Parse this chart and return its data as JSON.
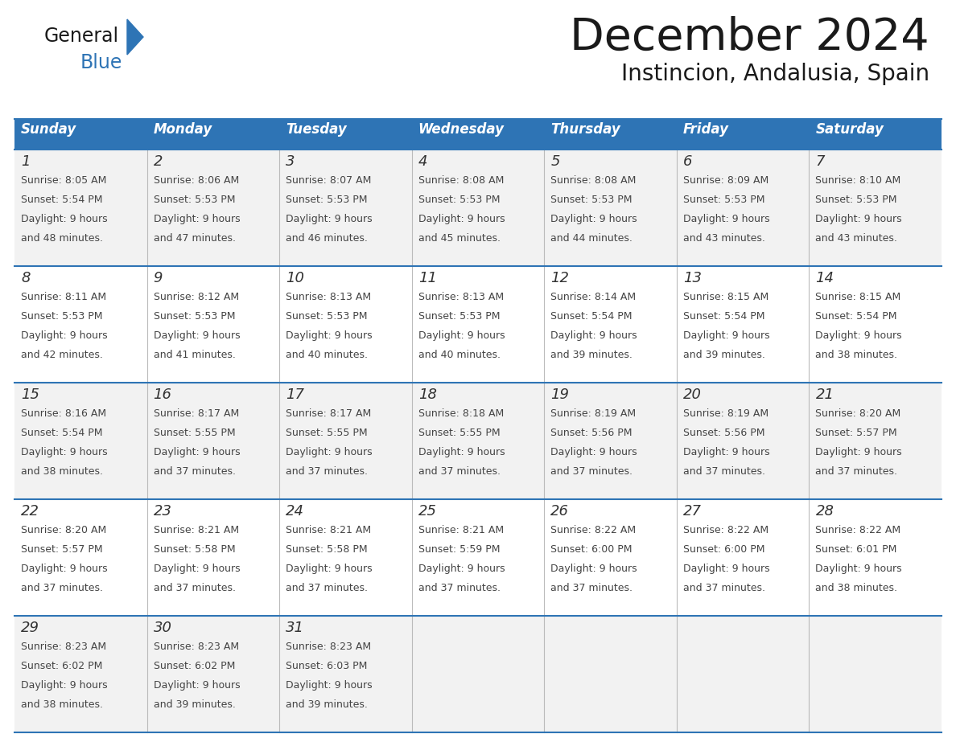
{
  "title": "December 2024",
  "subtitle": "Instincion, Andalusia, Spain",
  "days_of_week": [
    "Sunday",
    "Monday",
    "Tuesday",
    "Wednesday",
    "Thursday",
    "Friday",
    "Saturday"
  ],
  "header_bg": "#2E74B5",
  "header_text_color": "#FFFFFF",
  "row_bg_odd": "#F2F2F2",
  "row_bg_even": "#FFFFFF",
  "cell_border_color": "#2E74B5",
  "day_num_color": "#333333",
  "text_color": "#444444",
  "logo_general_color": "#1a1a1a",
  "logo_blue_color": "#2E74B5",
  "calendar_data": [
    [
      {
        "day": 1,
        "sunrise": "8:05 AM",
        "sunset": "5:54 PM",
        "daylight_hours": 9,
        "daylight_minutes": 48
      },
      {
        "day": 2,
        "sunrise": "8:06 AM",
        "sunset": "5:53 PM",
        "daylight_hours": 9,
        "daylight_minutes": 47
      },
      {
        "day": 3,
        "sunrise": "8:07 AM",
        "sunset": "5:53 PM",
        "daylight_hours": 9,
        "daylight_minutes": 46
      },
      {
        "day": 4,
        "sunrise": "8:08 AM",
        "sunset": "5:53 PM",
        "daylight_hours": 9,
        "daylight_minutes": 45
      },
      {
        "day": 5,
        "sunrise": "8:08 AM",
        "sunset": "5:53 PM",
        "daylight_hours": 9,
        "daylight_minutes": 44
      },
      {
        "day": 6,
        "sunrise": "8:09 AM",
        "sunset": "5:53 PM",
        "daylight_hours": 9,
        "daylight_minutes": 43
      },
      {
        "day": 7,
        "sunrise": "8:10 AM",
        "sunset": "5:53 PM",
        "daylight_hours": 9,
        "daylight_minutes": 43
      }
    ],
    [
      {
        "day": 8,
        "sunrise": "8:11 AM",
        "sunset": "5:53 PM",
        "daylight_hours": 9,
        "daylight_minutes": 42
      },
      {
        "day": 9,
        "sunrise": "8:12 AM",
        "sunset": "5:53 PM",
        "daylight_hours": 9,
        "daylight_minutes": 41
      },
      {
        "day": 10,
        "sunrise": "8:13 AM",
        "sunset": "5:53 PM",
        "daylight_hours": 9,
        "daylight_minutes": 40
      },
      {
        "day": 11,
        "sunrise": "8:13 AM",
        "sunset": "5:53 PM",
        "daylight_hours": 9,
        "daylight_minutes": 40
      },
      {
        "day": 12,
        "sunrise": "8:14 AM",
        "sunset": "5:54 PM",
        "daylight_hours": 9,
        "daylight_minutes": 39
      },
      {
        "day": 13,
        "sunrise": "8:15 AM",
        "sunset": "5:54 PM",
        "daylight_hours": 9,
        "daylight_minutes": 39
      },
      {
        "day": 14,
        "sunrise": "8:15 AM",
        "sunset": "5:54 PM",
        "daylight_hours": 9,
        "daylight_minutes": 38
      }
    ],
    [
      {
        "day": 15,
        "sunrise": "8:16 AM",
        "sunset": "5:54 PM",
        "daylight_hours": 9,
        "daylight_minutes": 38
      },
      {
        "day": 16,
        "sunrise": "8:17 AM",
        "sunset": "5:55 PM",
        "daylight_hours": 9,
        "daylight_minutes": 37
      },
      {
        "day": 17,
        "sunrise": "8:17 AM",
        "sunset": "5:55 PM",
        "daylight_hours": 9,
        "daylight_minutes": 37
      },
      {
        "day": 18,
        "sunrise": "8:18 AM",
        "sunset": "5:55 PM",
        "daylight_hours": 9,
        "daylight_minutes": 37
      },
      {
        "day": 19,
        "sunrise": "8:19 AM",
        "sunset": "5:56 PM",
        "daylight_hours": 9,
        "daylight_minutes": 37
      },
      {
        "day": 20,
        "sunrise": "8:19 AM",
        "sunset": "5:56 PM",
        "daylight_hours": 9,
        "daylight_minutes": 37
      },
      {
        "day": 21,
        "sunrise": "8:20 AM",
        "sunset": "5:57 PM",
        "daylight_hours": 9,
        "daylight_minutes": 37
      }
    ],
    [
      {
        "day": 22,
        "sunrise": "8:20 AM",
        "sunset": "5:57 PM",
        "daylight_hours": 9,
        "daylight_minutes": 37
      },
      {
        "day": 23,
        "sunrise": "8:21 AM",
        "sunset": "5:58 PM",
        "daylight_hours": 9,
        "daylight_minutes": 37
      },
      {
        "day": 24,
        "sunrise": "8:21 AM",
        "sunset": "5:58 PM",
        "daylight_hours": 9,
        "daylight_minutes": 37
      },
      {
        "day": 25,
        "sunrise": "8:21 AM",
        "sunset": "5:59 PM",
        "daylight_hours": 9,
        "daylight_minutes": 37
      },
      {
        "day": 26,
        "sunrise": "8:22 AM",
        "sunset": "6:00 PM",
        "daylight_hours": 9,
        "daylight_minutes": 37
      },
      {
        "day": 27,
        "sunrise": "8:22 AM",
        "sunset": "6:00 PM",
        "daylight_hours": 9,
        "daylight_minutes": 37
      },
      {
        "day": 28,
        "sunrise": "8:22 AM",
        "sunset": "6:01 PM",
        "daylight_hours": 9,
        "daylight_minutes": 38
      }
    ],
    [
      {
        "day": 29,
        "sunrise": "8:23 AM",
        "sunset": "6:02 PM",
        "daylight_hours": 9,
        "daylight_minutes": 38
      },
      {
        "day": 30,
        "sunrise": "8:23 AM",
        "sunset": "6:02 PM",
        "daylight_hours": 9,
        "daylight_minutes": 39
      },
      {
        "day": 31,
        "sunrise": "8:23 AM",
        "sunset": "6:03 PM",
        "daylight_hours": 9,
        "daylight_minutes": 39
      },
      null,
      null,
      null,
      null
    ]
  ]
}
